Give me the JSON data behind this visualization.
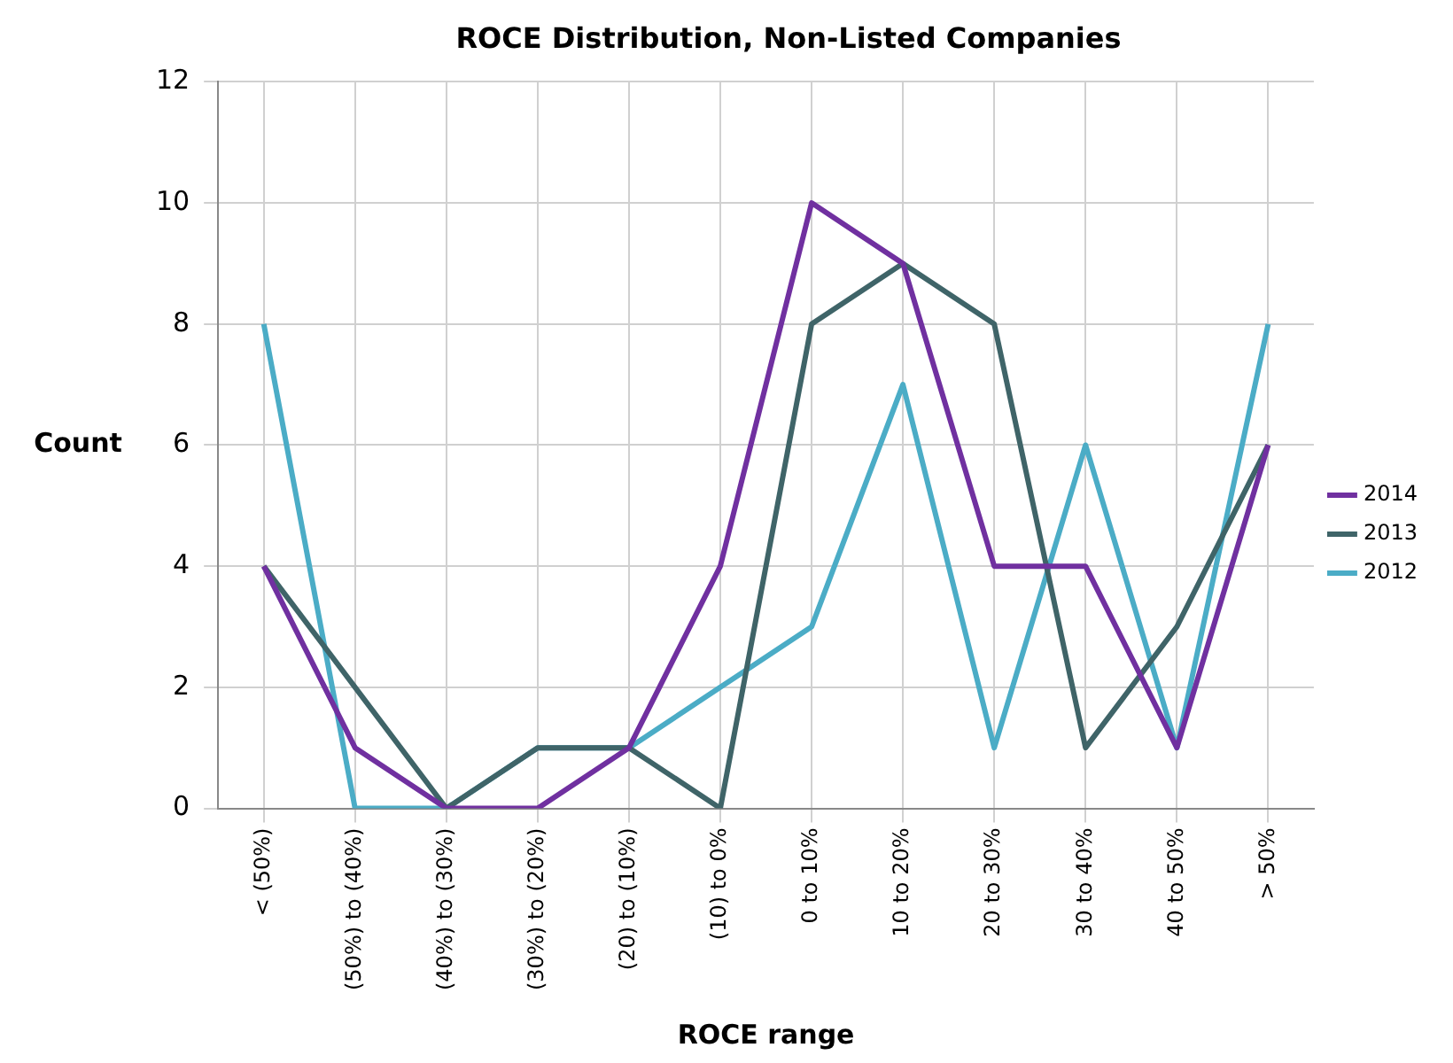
{
  "chart_data": {
    "type": "line",
    "title": "ROCE Distribution, Non-Listed Companies",
    "xlabel": "ROCE range",
    "ylabel": "Count",
    "categories": [
      "< (50%)",
      "(50%) to (40%)",
      "(40%) to (30%)",
      "(30%) to (20%)",
      "(20) to (10%)",
      "(10) to 0%",
      "0 to 10%",
      "10 to 20%",
      "20 to 30%",
      "30 to 40%",
      "40 to 50%",
      "> 50%"
    ],
    "series": [
      {
        "name": "2014",
        "color": "#7030a0",
        "values": [
          4,
          1,
          0,
          0,
          1,
          4,
          10,
          9,
          4,
          4,
          1,
          6
        ]
      },
      {
        "name": "2013",
        "color": "#3f6468",
        "values": [
          4,
          2,
          0,
          1,
          1,
          0,
          8,
          9,
          8,
          1,
          3,
          6
        ]
      },
      {
        "name": "2012",
        "color": "#4bacc6",
        "values": [
          8,
          0,
          0,
          1,
          1,
          2,
          3,
          7,
          1,
          6,
          1,
          8
        ]
      }
    ],
    "ylim": [
      0,
      12
    ],
    "yticks": [
      0,
      2,
      4,
      6,
      8,
      10,
      12
    ],
    "grid": true,
    "legend": "right",
    "marker": "none",
    "line_style": "solid"
  }
}
